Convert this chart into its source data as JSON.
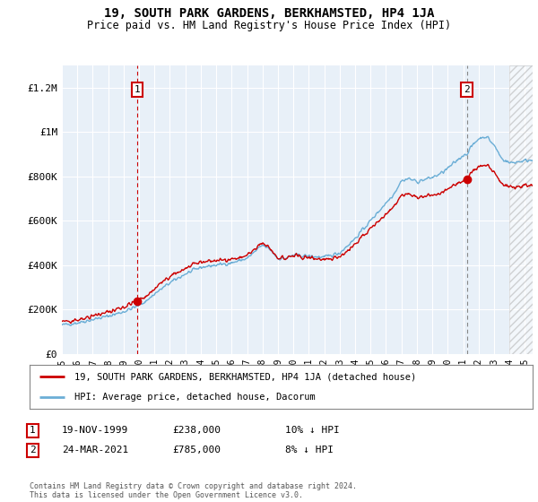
{
  "title": "19, SOUTH PARK GARDENS, BERKHAMSTED, HP4 1JA",
  "subtitle": "Price paid vs. HM Land Registry's House Price Index (HPI)",
  "ylim": [
    0,
    1300000
  ],
  "yticks": [
    0,
    200000,
    400000,
    600000,
    800000,
    1000000,
    1200000
  ],
  "ytick_labels": [
    "£0",
    "£200K",
    "£400K",
    "£600K",
    "£800K",
    "£1M",
    "£1.2M"
  ],
  "sale1_date_x": 1999.89,
  "sale1_price": 238000,
  "sale1_label": "1",
  "sale2_date_x": 2021.23,
  "sale2_price": 785000,
  "sale2_label": "2",
  "legend_line1": "19, SOUTH PARK GARDENS, BERKHAMSTED, HP4 1JA (detached house)",
  "legend_line2": "HPI: Average price, detached house, Dacorum",
  "sale1_info": [
    "1",
    "19-NOV-1999",
    "£238,000",
    "10% ↓ HPI"
  ],
  "sale2_info": [
    "2",
    "24-MAR-2021",
    "£785,000",
    "8% ↓ HPI"
  ],
  "footer": "Contains HM Land Registry data © Crown copyright and database right 2024.\nThis data is licensed under the Open Government Licence v3.0.",
  "hpi_color": "#6baed6",
  "price_color": "#cc0000",
  "vline1_color": "#cc0000",
  "vline2_color": "#888888",
  "chart_bg": "#e8f0f8",
  "grid_color": "#ffffff",
  "xmin": 1995.0,
  "xmax": 2025.5,
  "hatch_start": 2024.0
}
